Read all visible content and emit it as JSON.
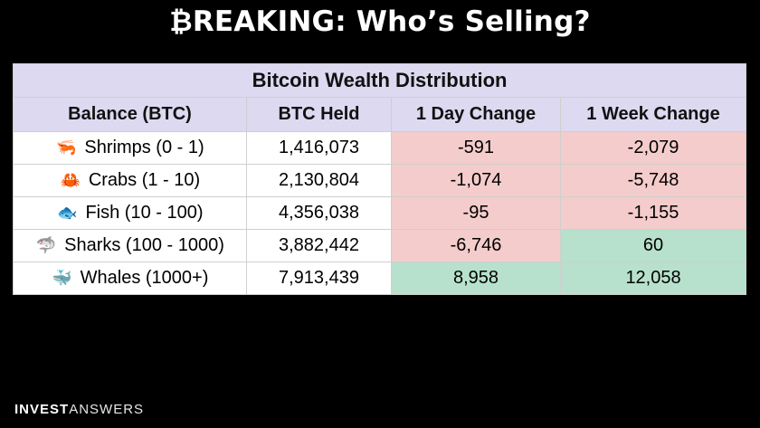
{
  "header": {
    "btc_glyph": "₿",
    "title_rest": "REAKING: Who’s Selling?"
  },
  "table": {
    "caption": "Bitcoin Wealth Distribution",
    "columns": [
      "Balance (BTC)",
      "BTC Held",
      "1 Day Change",
      "1 Week Change"
    ],
    "rows": [
      {
        "icon": "🦐",
        "icon_name": "shrimp-icon",
        "label": "Shrimps (0 - 1)",
        "held": "1,416,073",
        "day": "-591",
        "week": "-2,079",
        "day_status": "negative",
        "week_status": "negative"
      },
      {
        "icon": "🦀",
        "icon_name": "crab-icon",
        "label": "Crabs (1 - 10)",
        "held": "2,130,804",
        "day": "-1,074",
        "week": "-5,748",
        "day_status": "negative",
        "week_status": "negative"
      },
      {
        "icon": "🐟",
        "icon_name": "fish-icon",
        "label": "Fish (10 - 100)",
        "held": "4,356,038",
        "day": "-95",
        "week": "-1,155",
        "day_status": "negative",
        "week_status": "negative"
      },
      {
        "icon": "🦈",
        "icon_name": "shark-icon",
        "label": "Sharks (100 - 1000)",
        "held": "3,882,442",
        "day": "-6,746",
        "week": "60",
        "day_status": "negative",
        "week_status": "positive"
      },
      {
        "icon": "🐳",
        "icon_name": "whale-icon",
        "label": "Whales (1000+)",
        "held": "7,913,439",
        "day": "8,958",
        "week": "12,058",
        "day_status": "positive",
        "week_status": "positive"
      }
    ]
  },
  "brand": {
    "bold": "INVEST",
    "light": "ANSWERS"
  },
  "colors": {
    "header_bg": "#dcd9f0",
    "negative": "#f4cccc",
    "positive": "#b7e1cd",
    "page_bg": "#000000"
  }
}
